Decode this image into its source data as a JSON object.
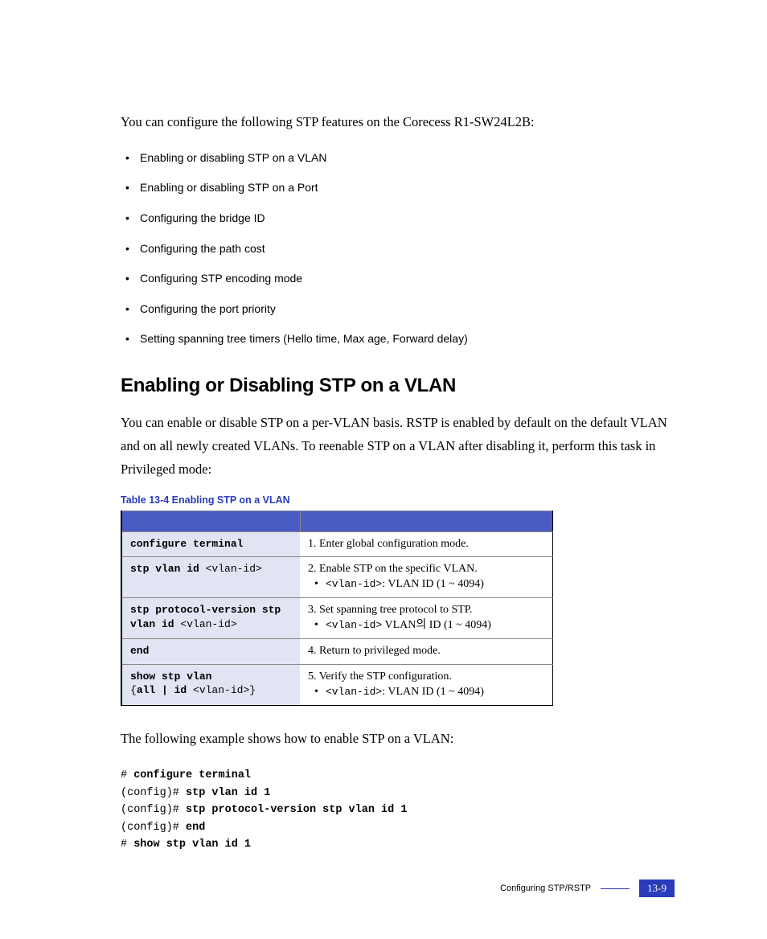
{
  "colors": {
    "accent_blue": "#2a3bbb",
    "table_header_bg": "#4a5bc4",
    "table_cmd_bg": "#e1e4f2",
    "page_bg": "#ffffff",
    "text": "#000000",
    "border_light": "#888888"
  },
  "intro": "You can configure the following STP features on the Corecess R1-SW24L2B:",
  "features": [
    "Enabling or disabling STP on a VLAN",
    "Enabling or disabling STP on a Port",
    "Configuring the bridge ID",
    "Configuring the path cost",
    "Configuring STP encoding mode",
    "Configuring the port priority",
    "Setting spanning tree timers (Hello time, Max age, Forward delay)"
  ],
  "section_title": "Enabling or Disabling STP on a VLAN",
  "section_body": "You can enable or disable STP on a per-VLAN basis. RSTP is enabled by default on the default VLAN and on all newly created VLANs. To reenable STP on a VLAN after disabling it, perform this task in Privileged mode:",
  "table": {
    "caption": "Table 13-4   Enabling STP on a VLAN",
    "rows": [
      {
        "cmd_bold": "configure terminal",
        "cmd_param": "",
        "desc_num": "1.",
        "desc": "Enter global configuration mode.",
        "sub_mono": "",
        "sub_text": ""
      },
      {
        "cmd_bold": "stp  vlan id ",
        "cmd_param": "<vlan-id>",
        "desc_num": "2.",
        "desc": "Enable STP on the specific VLAN.",
        "sub_mono": "<vlan-id>",
        "sub_text": ":  VLAN ID (1 ~ 4094)"
      },
      {
        "cmd_bold": "stp protocol-version stp vlan id ",
        "cmd_param": "<vlan-id>",
        "desc_num": "3.",
        "desc": "Set spanning tree protocol to STP.",
        "sub_mono": "<vlan-id>",
        "sub_text": " VLAN의 ID (1 ~ 4094)"
      },
      {
        "cmd_bold": "end",
        "cmd_param": "",
        "desc_num": "4.",
        "desc": "Return to privileged mode.",
        "sub_mono": "",
        "sub_text": ""
      },
      {
        "cmd_bold": "show stp vlan ",
        "cmd_param": "",
        "cmd_line2_pre": "{",
        "cmd_line2_bold": "all | id ",
        "cmd_line2_param": "<vlan-id>",
        "cmd_line2_post": "}",
        "desc_num": "5.",
        "desc": "Verify the STP configuration.",
        "sub_mono": "<vlan-id>",
        "sub_text": ":  VLAN ID (1 ~ 4094)"
      }
    ]
  },
  "example_intro": "The following example shows how to enable STP on a VLAN:",
  "example": {
    "l1_prompt": "# ",
    "l1_cmd": "configure terminal",
    "l2_prompt": "(config)# ",
    "l2_cmd": "stp vlan id 1",
    "l3_prompt": "(config)# ",
    "l3_cmd": "stp protocol-version stp vlan id 1",
    "l4_prompt": "(config)# ",
    "l4_cmd": "end",
    "l5_prompt": "# ",
    "l5_cmd": "show stp vlan id 1"
  },
  "footer": {
    "section": "Configuring STP/RSTP",
    "page": "13-9"
  }
}
